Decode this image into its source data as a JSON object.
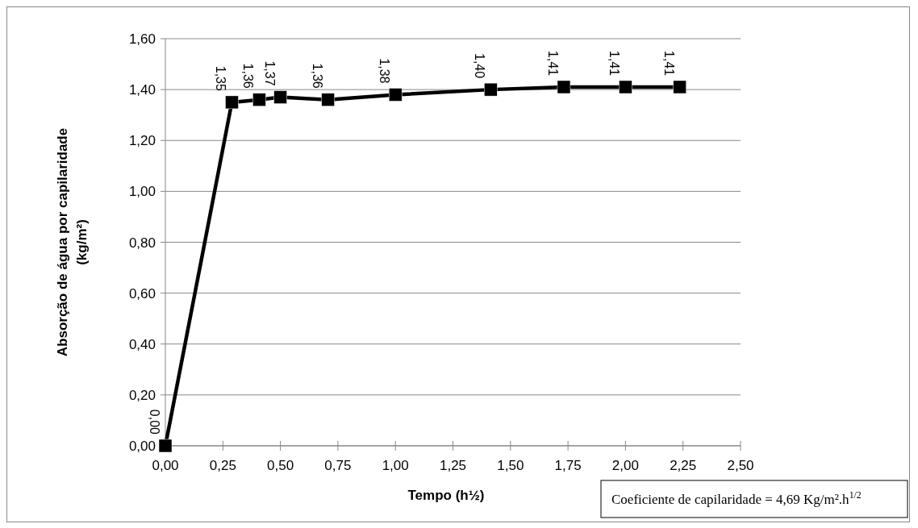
{
  "chart_data": {
    "type": "line",
    "xlabel": "Tempo (h½)",
    "ylabel": "Absorção de água por capilaridade (kg/m²)",
    "x": [
      0,
      0.289,
      0.408,
      0.5,
      0.707,
      1.0,
      1.414,
      1.732,
      2.0,
      2.236
    ],
    "series": [
      {
        "color": "#000000",
        "values": [
          0,
          1.35,
          1.36,
          1.37,
          1.36,
          1.38,
          1.4,
          1.41,
          1.41,
          1.41
        ],
        "value_labels": [
          "0,00",
          "1,35",
          "1,36",
          "1,37",
          "1,36",
          "1,38",
          "1,40",
          "1,41",
          "1,41",
          "1,41"
        ]
      }
    ],
    "xlim": [
      0,
      2.5
    ],
    "xticks": [
      {
        "value": 0,
        "label": "0,00"
      },
      {
        "value": 0.25,
        "label": "0,25"
      },
      {
        "value": 0.5,
        "label": "0,50"
      },
      {
        "value": 0.75,
        "label": "0,75"
      },
      {
        "value": 1,
        "label": "1,00"
      },
      {
        "value": 1.25,
        "label": "1,25"
      },
      {
        "value": 1.5,
        "label": "1,50"
      },
      {
        "value": 1.75,
        "label": "1,75"
      },
      {
        "value": 2,
        "label": "2,00"
      },
      {
        "value": 2.25,
        "label": "2,25"
      },
      {
        "value": 2.5,
        "label": "2,50"
      }
    ],
    "ylim": [
      0,
      1.6
    ],
    "yticks": [
      {
        "value": 0,
        "label": "0,00"
      },
      {
        "value": 0.2,
        "label": "0,20"
      },
      {
        "value": 0.4,
        "label": "0,40"
      },
      {
        "value": 0.6,
        "label": "0,60"
      },
      {
        "value": 0.8,
        "label": "0,80"
      },
      {
        "value": 1,
        "label": "1,00"
      },
      {
        "value": 1.2,
        "label": "1,20"
      },
      {
        "value": 1.4,
        "label": "1,40"
      },
      {
        "value": 1.6,
        "label": "1,60"
      }
    ],
    "grid": "y",
    "marker": "square",
    "line_style": "solid",
    "annotations": [
      "Coeficiente de capilaridade = 4,69 Kg/m².h$^{1/2}$"
    ]
  }
}
